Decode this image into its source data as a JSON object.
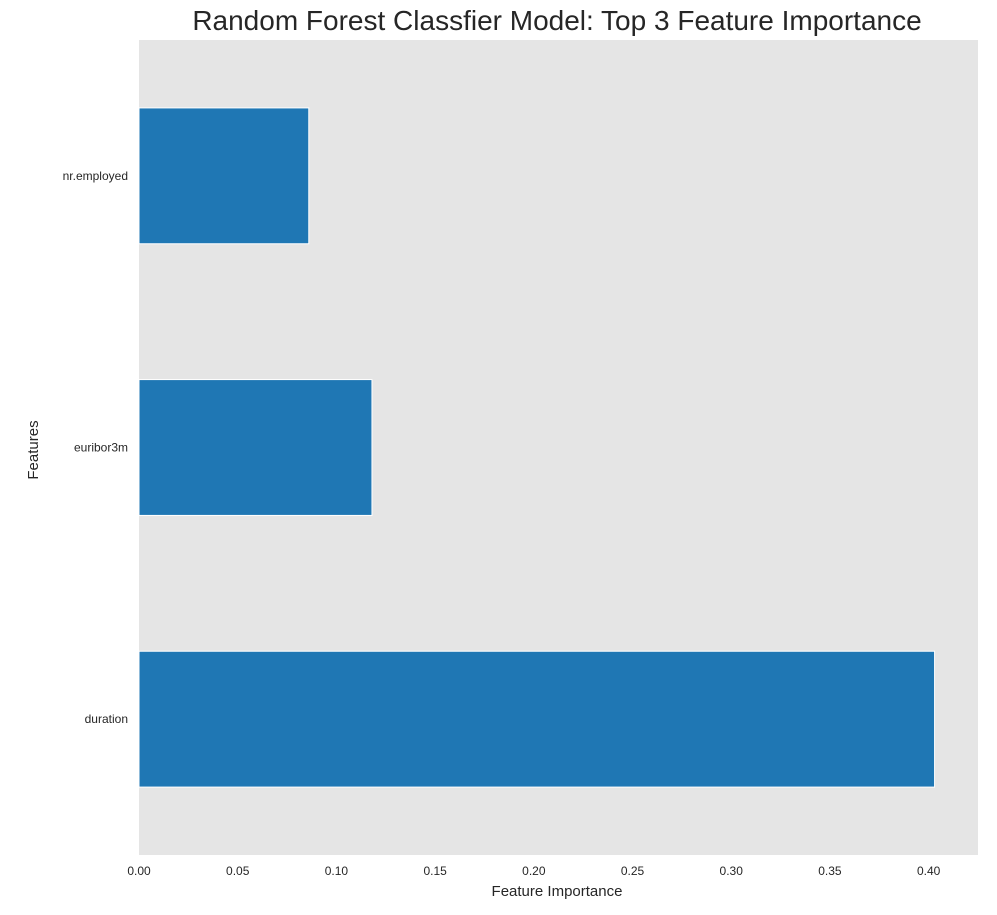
{
  "chart_data": {
    "type": "bar",
    "orientation": "horizontal",
    "title": "Random Forest Classfier Model: Top 3 Feature Importance",
    "xlabel": "Feature Importance",
    "ylabel": "Features",
    "categories": [
      "duration",
      "euribor3m",
      "nr.employed"
    ],
    "values": [
      0.403,
      0.118,
      0.086
    ],
    "xlim": [
      0,
      0.425
    ],
    "xticks": [
      "0.00",
      "0.05",
      "0.10",
      "0.15",
      "0.20",
      "0.25",
      "0.30",
      "0.35",
      "0.40"
    ],
    "grid": false,
    "bar_color": "#1f77b4",
    "background_color": "#e5e5e5"
  }
}
